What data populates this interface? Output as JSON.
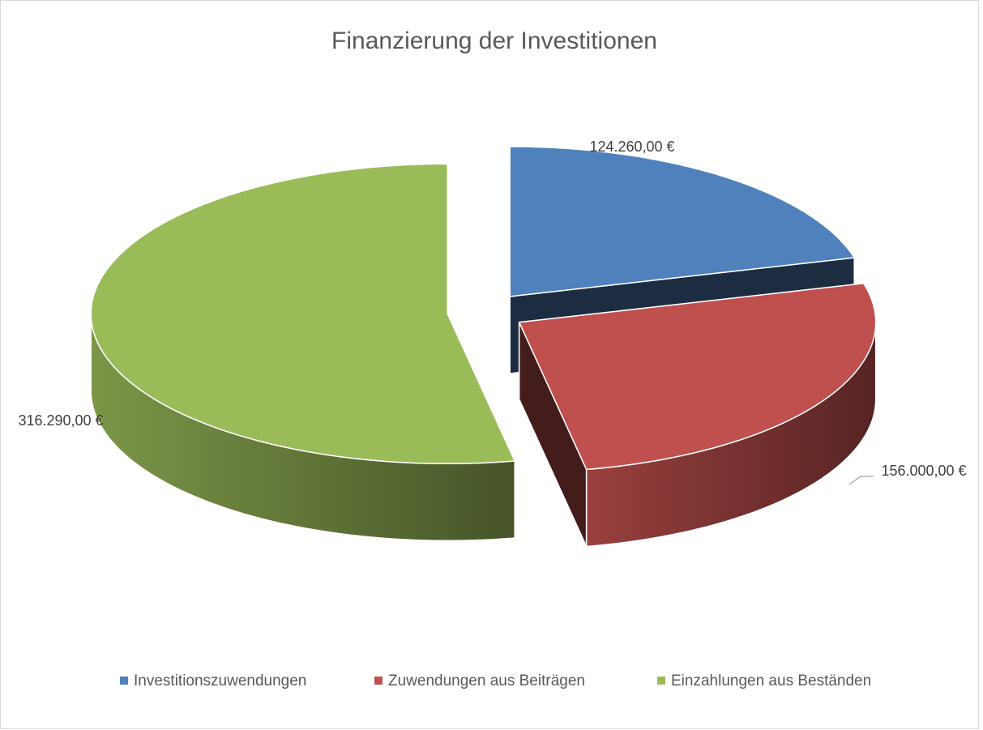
{
  "chart_data": {
    "type": "pie3d",
    "title": "Finanzierung der Investitionen",
    "categories": [
      "Investitionszuwendungen",
      "Zuwendungen aus Beiträgen",
      "Einzahlungen aus Beständen"
    ],
    "values": [
      124260,
      156000,
      316290
    ],
    "value_labels": [
      "124.260,00 €",
      "156.000,00 €",
      "316.290,00 €"
    ],
    "colors": [
      "#4f81bd",
      "#c0504d",
      "#9bbb59"
    ],
    "legend": "bottom"
  }
}
